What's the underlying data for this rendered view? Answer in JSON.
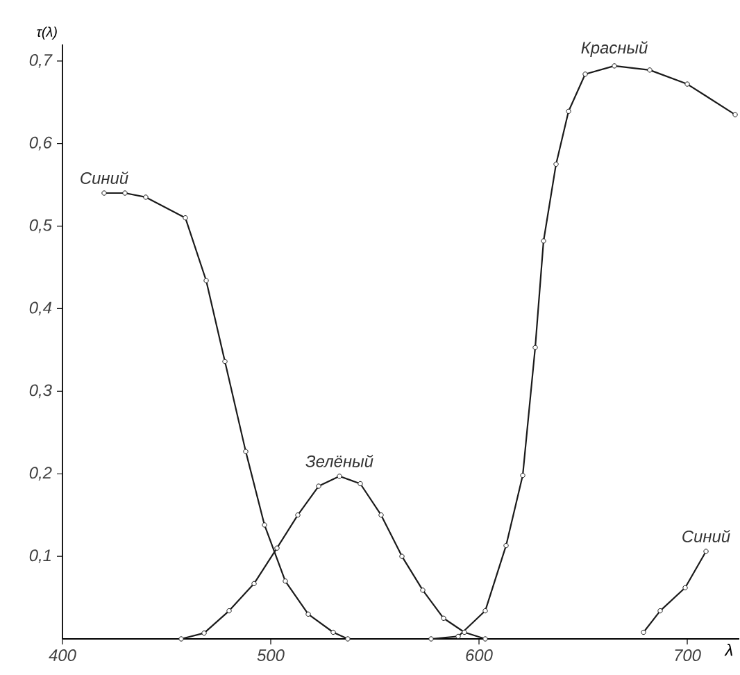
{
  "chart_data": {
    "type": "line",
    "xlabel": "λ",
    "ylabel": "τ(λ)",
    "xlim": [
      400,
      725
    ],
    "ylim": [
      0,
      0.72
    ],
    "xticks": [
      400,
      500,
      600,
      700
    ],
    "yticks": [
      {
        "value": 0.1,
        "label": "0,1"
      },
      {
        "value": 0.2,
        "label": "0,2"
      },
      {
        "value": 0.3,
        "label": "0,3"
      },
      {
        "value": 0.4,
        "label": "0,4"
      },
      {
        "value": 0.5,
        "label": "0,5"
      },
      {
        "value": 0.6,
        "label": "0,6"
      },
      {
        "value": 0.7,
        "label": "0,7"
      }
    ],
    "marker": "circle",
    "line_style": "solid",
    "grid": false,
    "legend": false,
    "series": [
      {
        "name": "Синий",
        "color": "#1a1a1a",
        "x": [
          420,
          430,
          440,
          459,
          469,
          478,
          488,
          497,
          507,
          518,
          530,
          537
        ],
        "values": [
          0.54,
          0.54,
          0.535,
          0.51,
          0.434,
          0.336,
          0.227,
          0.138,
          0.07,
          0.03,
          0.008,
          0
        ]
      },
      {
        "name": "Зелёный",
        "color": "#1a1a1a",
        "x": [
          457,
          468,
          480,
          492,
          503,
          513,
          523,
          533,
          543,
          553,
          563,
          573,
          583,
          593,
          603
        ],
        "values": [
          0,
          0.007,
          0.034,
          0.067,
          0.11,
          0.15,
          0.185,
          0.197,
          0.188,
          0.15,
          0.1,
          0.059,
          0.025,
          0.008,
          0
        ]
      },
      {
        "name": "Красный",
        "color": "#1a1a1a",
        "x": [
          577,
          590,
          603,
          613,
          621,
          627,
          631,
          637,
          643,
          651,
          665,
          682,
          700,
          723
        ],
        "values": [
          0,
          0.003,
          0.034,
          0.113,
          0.198,
          0.353,
          0.482,
          0.575,
          0.639,
          0.684,
          0.694,
          0.689,
          0.672,
          0.635
        ]
      },
      {
        "name": "Синий",
        "color": "#1a1a1a",
        "x": [
          679,
          687,
          699,
          709
        ],
        "values": [
          0.008,
          0.034,
          0.062,
          0.106
        ]
      }
    ]
  }
}
